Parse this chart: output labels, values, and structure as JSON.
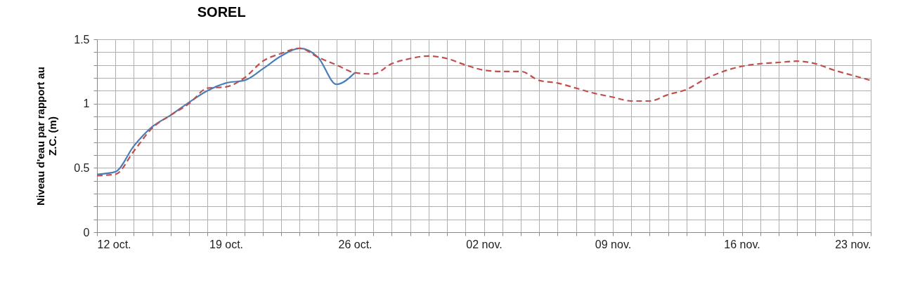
{
  "chart_data": {
    "type": "line",
    "title": "SOREL",
    "ylabel": "Niveau d'eau par rapport au Z.C. (m)",
    "x": [
      "--10-12",
      "--10-13",
      "--10-14",
      "--10-15",
      "--10-16",
      "--10-17",
      "--10-18",
      "--10-19",
      "--10-20",
      "--10-21",
      "--10-22",
      "--10-23",
      "--10-24",
      "--10-25",
      "--10-26",
      "--10-27",
      "--10-28",
      "--10-29",
      "--10-30",
      "--10-31",
      "--11-01",
      "--11-02",
      "--11-03",
      "--11-04",
      "--11-05",
      "--11-06",
      "--11-07",
      "--11-08",
      "--11-09",
      "--11-10",
      "--11-11",
      "--11-12",
      "--11-13",
      "--11-14",
      "--11-15",
      "--11-16",
      "--11-17",
      "--11-18",
      "--11-19",
      "--11-20",
      "--11-21",
      "--11-22",
      "--11-23"
    ],
    "series": [
      {
        "color": "#4a7ebb",
        "line_style": "solid",
        "values": [
          0.45,
          0.47,
          0.67,
          0.82,
          0.91,
          1.01,
          1.1,
          1.16,
          1.18,
          1.27,
          1.37,
          1.43,
          1.36,
          1.15,
          1.24,
          null,
          null,
          null,
          null,
          null,
          null,
          null,
          null,
          null,
          null,
          null,
          null,
          null,
          null,
          null,
          null,
          null,
          null,
          null,
          null,
          null,
          null,
          null,
          null,
          null,
          null,
          null,
          null
        ]
      },
      {
        "color": "#c0504d",
        "line_style": "dashed",
        "values": [
          0.44,
          0.45,
          0.63,
          0.81,
          0.91,
          1.0,
          1.12,
          1.13,
          1.2,
          1.33,
          1.39,
          1.43,
          1.36,
          1.3,
          1.24,
          1.23,
          1.31,
          1.35,
          1.37,
          1.35,
          1.3,
          1.26,
          1.25,
          1.25,
          1.18,
          1.16,
          1.12,
          1.08,
          1.05,
          1.02,
          1.02,
          1.07,
          1.11,
          1.19,
          1.25,
          1.29,
          1.31,
          1.32,
          1.33,
          1.31,
          1.26,
          1.22,
          1.18
        ]
      }
    ],
    "xlim": [
      "--10-12",
      "--11-23"
    ],
    "xticks": [
      {
        "value": "--10-12",
        "label": "12 oct."
      },
      {
        "value": "--10-13",
        "label": null
      },
      {
        "value": "--10-14",
        "label": null
      },
      {
        "value": "--10-15",
        "label": null
      },
      {
        "value": "--10-16",
        "label": null
      },
      {
        "value": "--10-17",
        "label": null
      },
      {
        "value": "--10-18",
        "label": null
      },
      {
        "value": "--10-19",
        "label": "19 oct."
      },
      {
        "value": "--10-20",
        "label": null
      },
      {
        "value": "--10-21",
        "label": null
      },
      {
        "value": "--10-22",
        "label": null
      },
      {
        "value": "--10-23",
        "label": null
      },
      {
        "value": "--10-24",
        "label": null
      },
      {
        "value": "--10-25",
        "label": null
      },
      {
        "value": "--10-26",
        "label": "26 oct."
      },
      {
        "value": "--10-27",
        "label": null
      },
      {
        "value": "--10-28",
        "label": null
      },
      {
        "value": "--10-29",
        "label": null
      },
      {
        "value": "--10-30",
        "label": null
      },
      {
        "value": "--10-31",
        "label": null
      },
      {
        "value": "--11-01",
        "label": null
      },
      {
        "value": "--11-02",
        "label": "02 nov."
      },
      {
        "value": "--11-03",
        "label": null
      },
      {
        "value": "--11-04",
        "label": null
      },
      {
        "value": "--11-05",
        "label": null
      },
      {
        "value": "--11-06",
        "label": null
      },
      {
        "value": "--11-07",
        "label": null
      },
      {
        "value": "--11-08",
        "label": null
      },
      {
        "value": "--11-09",
        "label": "09 nov."
      },
      {
        "value": "--11-10",
        "label": null
      },
      {
        "value": "--11-11",
        "label": null
      },
      {
        "value": "--11-12",
        "label": null
      },
      {
        "value": "--11-13",
        "label": null
      },
      {
        "value": "--11-14",
        "label": null
      },
      {
        "value": "--11-15",
        "label": null
      },
      {
        "value": "--11-16",
        "label": "16 nov."
      },
      {
        "value": "--11-17",
        "label": null
      },
      {
        "value": "--11-18",
        "label": null
      },
      {
        "value": "--11-19",
        "label": null
      },
      {
        "value": "--11-20",
        "label": null
      },
      {
        "value": "--11-21",
        "label": null
      },
      {
        "value": "--11-22",
        "label": null
      },
      {
        "value": "--11-23",
        "label": "23 nov."
      }
    ],
    "ylim": [
      0,
      1.5
    ],
    "yticks": [
      0,
      {
        "value": 0.1,
        "label": null
      },
      {
        "value": 0.2,
        "label": null
      },
      {
        "value": 0.3,
        "label": null
      },
      {
        "value": 0.4,
        "label": null
      },
      0.5,
      {
        "value": 0.6,
        "label": null
      },
      {
        "value": 0.7,
        "label": null
      },
      {
        "value": 0.8,
        "label": null
      },
      {
        "value": 0.9,
        "label": null
      },
      1,
      {
        "value": 1.1,
        "label": null
      },
      {
        "value": 1.2,
        "label": null
      },
      {
        "value": 1.3,
        "label": null
      },
      {
        "value": 1.4,
        "label": null
      },
      1.5
    ],
    "grid": true,
    "marker": "none"
  }
}
